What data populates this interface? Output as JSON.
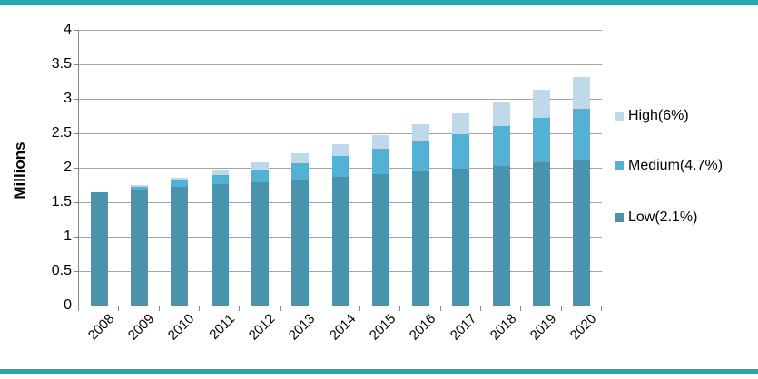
{
  "accent_color": "#27a7a9",
  "chart_data": {
    "type": "bar",
    "stacked": true,
    "title": "",
    "ylabel": "Millions",
    "xlabel": "",
    "ylim": [
      0,
      4
    ],
    "ytick_step": 0.5,
    "ytick_labels": [
      "0",
      "0.5",
      "1",
      "1.5",
      "2",
      "2.5",
      "3",
      "3.5",
      "4"
    ],
    "grid": "horizontal",
    "legend_position": "right",
    "categories": [
      "2008",
      "2009",
      "2010",
      "2011",
      "2012",
      "2013",
      "2014",
      "2015",
      "2016",
      "2017",
      "2018",
      "2019",
      "2020"
    ],
    "series": [
      {
        "name": "Low(2.1%)",
        "color": "#4a93ae",
        "values": [
          1.65,
          1.68,
          1.72,
          1.76,
          1.79,
          1.83,
          1.87,
          1.91,
          1.95,
          1.99,
          2.03,
          2.08,
          2.12
        ]
      },
      {
        "name": "Medium(4.7%)",
        "color": "#52b1d4",
        "values": [
          1.65,
          1.73,
          1.81,
          1.89,
          1.98,
          2.07,
          2.17,
          2.27,
          2.38,
          2.49,
          2.61,
          2.73,
          2.86
        ]
      },
      {
        "name": "High(6%)",
        "color": "#bfd9e8",
        "values": [
          1.65,
          1.75,
          1.85,
          1.97,
          2.08,
          2.21,
          2.34,
          2.48,
          2.63,
          2.79,
          2.95,
          3.13,
          3.32
        ]
      }
    ]
  },
  "colors": {
    "gridline": "#a3a3a3",
    "axis": "#898989",
    "text": "#000000"
  }
}
